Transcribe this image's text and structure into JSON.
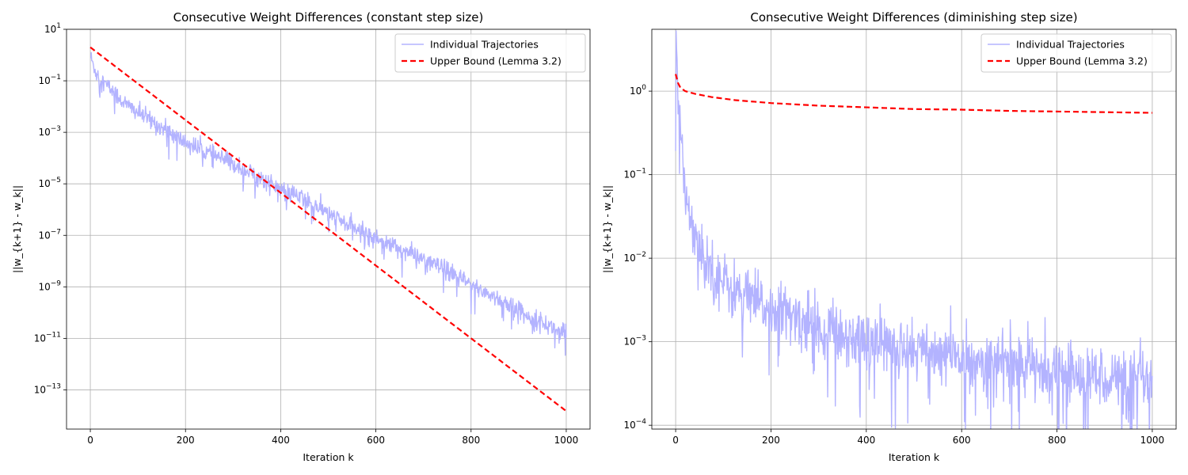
{
  "chart_data": [
    {
      "type": "line",
      "title": "Consecutive Weight Differences (constant step size)",
      "xlabel": "Iteration k",
      "ylabel": "||w_{k+1} - w_k||",
      "xlim": [
        -50,
        1050
      ],
      "ylim": [
        3e-15,
        10
      ],
      "yscale": "log",
      "grid": true,
      "legend_position": "top-right",
      "xticks": [
        0,
        200,
        400,
        600,
        800,
        1000
      ],
      "xtick_labels": [
        "0",
        "200",
        "400",
        "600",
        "800",
        "1000"
      ],
      "yticks": [
        10.0,
        0.1,
        0.001,
        1e-05,
        1e-07,
        1e-09,
        1e-11,
        1e-13
      ],
      "ytick_labels": [
        {
          "base": "10",
          "exp": "1"
        },
        {
          "base": "10",
          "exp": "−1"
        },
        {
          "base": "10",
          "exp": "−3"
        },
        {
          "base": "10",
          "exp": "−5"
        },
        {
          "base": "10",
          "exp": "−7"
        },
        {
          "base": "10",
          "exp": "−9"
        },
        {
          "base": "10",
          "exp": "−11"
        },
        {
          "base": "10",
          "exp": "−13"
        }
      ],
      "series": [
        {
          "name": "Individual Trajectories",
          "color": "#b3b3ff",
          "style": "solid",
          "x": [
            0,
            10,
            25,
            50,
            75,
            100,
            150,
            200,
            250,
            300,
            350,
            400,
            450,
            500,
            550,
            600,
            650,
            700,
            750,
            800,
            850,
            900,
            950,
            1000
          ],
          "y": [
            0.9,
            0.25,
            0.1,
            0.035,
            0.012,
            0.006,
            0.0015,
            0.0004,
            0.00015,
            6e-05,
            2e-05,
            6e-06,
            2.5e-06,
            7e-07,
            2e-07,
            8e-08,
            3e-08,
            1.2e-08,
            4e-09,
            1.2e-09,
            4e-10,
            1.2e-10,
            4e-11,
            1.5e-11
          ]
        },
        {
          "name": "Upper Bound (Lemma 3.2)",
          "color": "#ff0000",
          "style": "dashed",
          "x": [
            0,
            1000
          ],
          "y": [
            2.0,
            1.5e-14
          ]
        }
      ]
    },
    {
      "type": "line",
      "title": "Consecutive Weight Differences (diminishing step size)",
      "xlabel": "Iteration k",
      "ylabel": "||w_{k+1} - w_k||",
      "xlim": [
        -50,
        1050
      ],
      "ylim": [
        9e-05,
        5.5
      ],
      "yscale": "log",
      "grid": true,
      "legend_position": "top-right",
      "xticks": [
        0,
        200,
        400,
        600,
        800,
        1000
      ],
      "xtick_labels": [
        "0",
        "200",
        "400",
        "600",
        "800",
        "1000"
      ],
      "yticks": [
        1,
        0.1,
        0.01,
        0.001,
        0.0001
      ],
      "ytick_labels": [
        {
          "base": "10",
          "exp": "0"
        },
        {
          "base": "10",
          "exp": "−1"
        },
        {
          "base": "10",
          "exp": "−2"
        },
        {
          "base": "10",
          "exp": "−3"
        },
        {
          "base": "10",
          "exp": "−4"
        }
      ],
      "series": [
        {
          "name": "Individual Trajectories",
          "color": "#b3b3ff",
          "style": "solid",
          "x": [
            0,
            1,
            2,
            3,
            5,
            8,
            12,
            16,
            20,
            25,
            30,
            40,
            50,
            60,
            80,
            100,
            125,
            150,
            175,
            200,
            250,
            300,
            350,
            400,
            450,
            500,
            550,
            600,
            650,
            700,
            750,
            800,
            850,
            900,
            950,
            1000
          ],
          "y": [
            3.2,
            2.5,
            2.0,
            1.4,
            0.8,
            0.4,
            0.25,
            0.15,
            0.08,
            0.045,
            0.03,
            0.022,
            0.015,
            0.01,
            0.007,
            0.005,
            0.004,
            0.0033,
            0.0028,
            0.0024,
            0.0019,
            0.0015,
            0.0012,
            0.00105,
            0.0009,
            0.00085,
            0.0007,
            0.00065,
            0.0006,
            0.00055,
            0.0005,
            0.00045,
            0.0004,
            0.00038,
            0.00035,
            0.00033
          ]
        },
        {
          "name": "Upper Bound (Lemma 3.2)",
          "color": "#ff0000",
          "style": "dashed",
          "x": [
            0,
            5,
            10,
            20,
            40,
            75,
            125,
            200,
            300,
            400,
            500,
            600,
            700,
            800,
            900,
            1000
          ],
          "y": [
            1.6,
            1.25,
            1.1,
            1.0,
            0.93,
            0.85,
            0.78,
            0.72,
            0.67,
            0.64,
            0.61,
            0.6,
            0.58,
            0.57,
            0.56,
            0.55
          ]
        }
      ]
    }
  ]
}
